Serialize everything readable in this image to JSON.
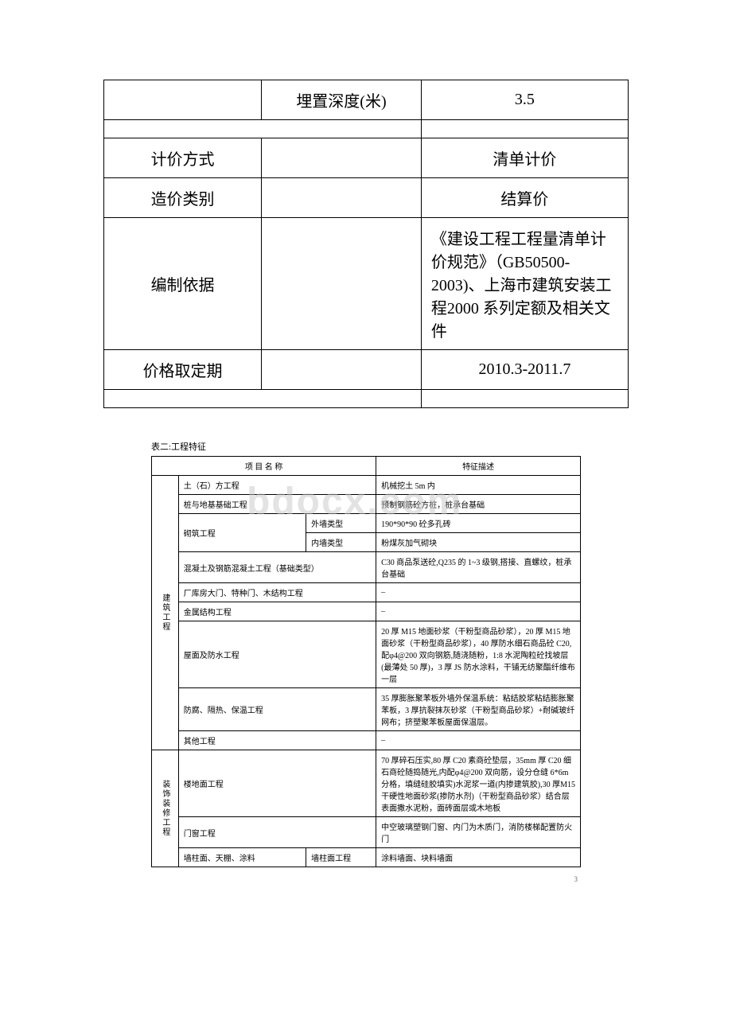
{
  "mainTable": {
    "rows": [
      {
        "label": "",
        "mid": "埋置深度(米)",
        "val": "3.5"
      },
      {
        "spacer": true
      },
      {
        "label": "计价方式",
        "mid": "",
        "val": "清单计价",
        "colspan_mid": false
      },
      {
        "label": "造价类别",
        "mid": "",
        "val": "结算价"
      },
      {
        "label": "编制依据",
        "mid": "",
        "val": "《建设工程工程量清单计价规范》（GB50500-2003)、上海市建筑安装工程2000 系列定额及相关文件",
        "align": "left"
      },
      {
        "label": "价格取定期",
        "mid": "",
        "val": "2010.3-2011.7"
      },
      {
        "spacer": true
      }
    ]
  },
  "detailCaption": "表二:工程特征",
  "detailHeaders": {
    "col1": "项 目 名 称",
    "col2": "特征描述"
  },
  "watermark": "bdocx.com",
  "pageNum": "3",
  "groups": [
    {
      "groupLabel": "建筑工程",
      "rows": [
        {
          "name": "土（石）方工程",
          "desc": "机械挖土 5m 内",
          "colspan": 2
        },
        {
          "name": "桩与地基基础工程",
          "desc": "预制钢筋砼方桩，桩承台基础",
          "colspan": 2
        },
        {
          "name": "砌筑工程",
          "sub": "外墙类型",
          "desc": "190*90*90 砼多孔砖",
          "rowspan": 2
        },
        {
          "sub": "内墙类型",
          "desc": "粉煤灰加气砌块"
        },
        {
          "name": "混凝土及钢筋混凝土工程（基础类型）",
          "desc": "C30 商品泵送砼,Q235 的 1~3 级钢,搭接、直螺纹，桩承台基础",
          "colspan": 2
        },
        {
          "name": "厂库房大门、特种门、木结构工程",
          "desc": "–",
          "colspan": 2
        },
        {
          "name": "金属结构工程",
          "desc": "–",
          "colspan": 2
        },
        {
          "name": "屋面及防水工程",
          "desc": "20 厚 M15 地面砂浆（干粉型商品砂浆），20 厚 M15 地面砂浆（干粉型商品砂浆），40 厚防水细石商品砼 C20,配φ4@200 双向钢筋,随浇随粉，1:8 水泥陶粒砼找坡层(最薄处 50 厚)，3 厚 JS 防水涂料，干铺无纺聚酯纤维布一层",
          "colspan": 2
        },
        {
          "name": "防腐、隔热、保温工程",
          "desc": "35 厚膨胀聚苯板外墙外保温系统：粘结胶浆粘结膨胀聚苯板，3 厚抗裂抹灰砂浆（干粉型商品砂浆）+耐碱玻纤网布；挤塑聚苯板屋面保温层。",
          "colspan": 2
        },
        {
          "name": "其他工程",
          "desc": "–",
          "colspan": 2
        }
      ]
    },
    {
      "groupLabel": "装饰装修工程",
      "rows": [
        {
          "name": "楼地面工程",
          "desc": "70 厚碎石压实,80 厚 C20 素商砼垫层，35mm 厚 C20 细石商砼随捣随光,内配φ4@200 双向筋，设分仓缝 6*6m 分格，填缝硅胶填实)水泥浆一道(内掺建筑胶),30 厚M15 干硬性地面砂浆(掺防水剂)（干粉型商品砂浆）结合层表面撒水泥粉，面砖面层或木地板",
          "colspan": 2
        },
        {
          "name": "门窗工程",
          "desc": "中空玻璃塑钢门窗、内门为木质门，消防楼梯配置防火门",
          "colspan": 2
        },
        {
          "name": "墙柱面、天棚、涂料",
          "sub": "墙柱面工程",
          "desc": "涂料墙面、块料墙面"
        }
      ]
    }
  ]
}
